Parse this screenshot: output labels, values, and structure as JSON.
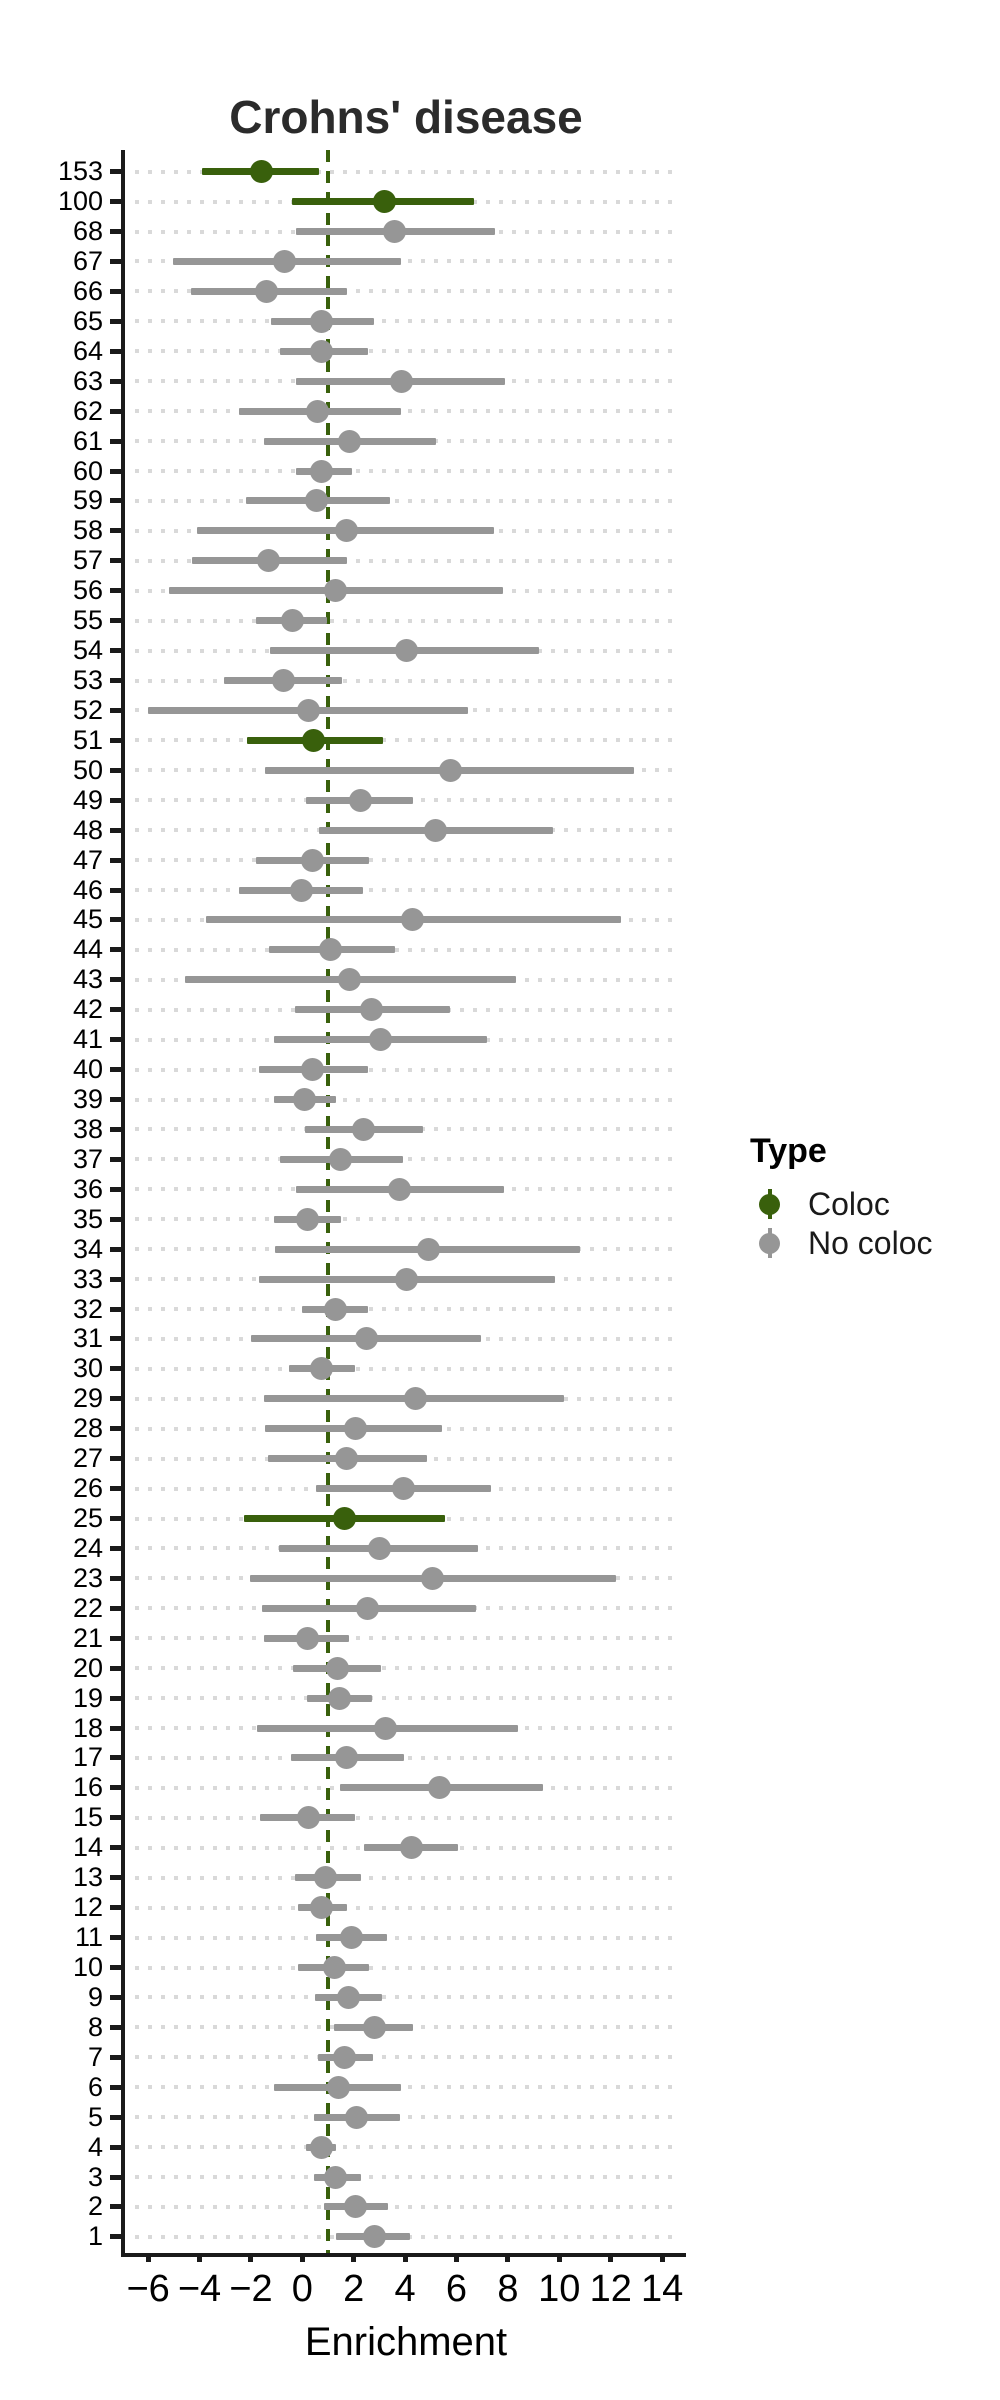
{
  "title": "Crohns' disease",
  "x_axis": {
    "label": "Enrichment",
    "ticks": [
      {
        "label": "−6",
        "value": -6
      },
      {
        "label": "−4",
        "value": -4
      },
      {
        "label": "−2",
        "value": -2
      },
      {
        "label": "0",
        "value": 0
      },
      {
        "label": "2",
        "value": 2
      },
      {
        "label": "4",
        "value": 4
      },
      {
        "label": "6",
        "value": 6
      },
      {
        "label": "8",
        "value": 8
      },
      {
        "label": "10",
        "value": 10
      },
      {
        "label": "12",
        "value": 12
      },
      {
        "label": "14",
        "value": 14
      }
    ]
  },
  "legend": {
    "title": "Type",
    "items": [
      {
        "label": "Coloc",
        "color": "#39600c"
      },
      {
        "label": "No coloc",
        "color": "#969696"
      }
    ]
  },
  "colors": {
    "coloc": "#39600c",
    "no_coloc": "#969696",
    "grid_dots": "#d9d9d9",
    "spine": "#1a1a1a",
    "reference_line": "#39600c"
  },
  "chart_data": {
    "type": "pointrange",
    "orientation": "horizontal",
    "title": "Crohns' disease",
    "xlabel": "Enrichment",
    "ylabel": "",
    "xlim": [
      -6.9,
      14.9
    ],
    "grid": "dotted-horizontal",
    "legend_position": "right",
    "reference_line_x": 1,
    "rows": [
      {
        "label": "153",
        "estimate": -1.6,
        "lower": -3.9,
        "upper": 0.65,
        "type": "Coloc"
      },
      {
        "label": "100",
        "estimate": 3.2,
        "lower": -0.4,
        "upper": 6.7,
        "type": "Coloc"
      },
      {
        "label": "68",
        "estimate": 3.6,
        "lower": -0.25,
        "upper": 7.5,
        "type": "No coloc"
      },
      {
        "label": "67",
        "estimate": -0.7,
        "lower": -5.05,
        "upper": 3.85,
        "type": "No coloc"
      },
      {
        "label": "66",
        "estimate": -1.4,
        "lower": -4.35,
        "upper": 1.75,
        "type": "No coloc"
      },
      {
        "label": "65",
        "estimate": 0.75,
        "lower": -1.2,
        "upper": 2.8,
        "type": "No coloc"
      },
      {
        "label": "64",
        "estimate": 0.75,
        "lower": -0.85,
        "upper": 2.55,
        "type": "No coloc"
      },
      {
        "label": "63",
        "estimate": 3.85,
        "lower": -0.25,
        "upper": 7.9,
        "type": "No coloc"
      },
      {
        "label": "62",
        "estimate": 0.6,
        "lower": -2.45,
        "upper": 3.85,
        "type": "No coloc"
      },
      {
        "label": "61",
        "estimate": 1.85,
        "lower": -1.5,
        "upper": 5.2,
        "type": "No coloc"
      },
      {
        "label": "60",
        "estimate": 0.75,
        "lower": -0.25,
        "upper": 1.95,
        "type": "No coloc"
      },
      {
        "label": "59",
        "estimate": 0.55,
        "lower": -2.2,
        "upper": 3.4,
        "type": "No coloc"
      },
      {
        "label": "58",
        "estimate": 1.7,
        "lower": -4.1,
        "upper": 7.45,
        "type": "No coloc"
      },
      {
        "label": "57",
        "estimate": -1.3,
        "lower": -4.3,
        "upper": 1.75,
        "type": "No coloc"
      },
      {
        "label": "56",
        "estimate": 1.3,
        "lower": -5.2,
        "upper": 7.8,
        "type": "No coloc"
      },
      {
        "label": "55",
        "estimate": -0.4,
        "lower": -1.8,
        "upper": 0.95,
        "type": "No coloc"
      },
      {
        "label": "54",
        "estimate": 4.05,
        "lower": -1.25,
        "upper": 9.2,
        "type": "No coloc"
      },
      {
        "label": "53",
        "estimate": -0.75,
        "lower": -3.05,
        "upper": 1.55,
        "type": "No coloc"
      },
      {
        "label": "52",
        "estimate": 0.25,
        "lower": -6.0,
        "upper": 6.45,
        "type": "No coloc"
      },
      {
        "label": "51",
        "estimate": 0.45,
        "lower": -2.15,
        "upper": 3.15,
        "type": "Coloc"
      },
      {
        "label": "50",
        "estimate": 5.75,
        "lower": -1.45,
        "upper": 12.9,
        "type": "No coloc"
      },
      {
        "label": "49",
        "estimate": 2.25,
        "lower": 0.15,
        "upper": 4.3,
        "type": "No coloc"
      },
      {
        "label": "48",
        "estimate": 5.2,
        "lower": 0.65,
        "upper": 9.75,
        "type": "No coloc"
      },
      {
        "label": "47",
        "estimate": 0.4,
        "lower": -1.8,
        "upper": 2.6,
        "type": "No coloc"
      },
      {
        "label": "46",
        "estimate": -0.05,
        "lower": -2.45,
        "upper": 2.35,
        "type": "No coloc"
      },
      {
        "label": "45",
        "estimate": 4.3,
        "lower": -3.75,
        "upper": 12.4,
        "type": "No coloc"
      },
      {
        "label": "44",
        "estimate": 1.1,
        "lower": -1.3,
        "upper": 3.6,
        "type": "No coloc"
      },
      {
        "label": "43",
        "estimate": 1.85,
        "lower": -4.55,
        "upper": 8.3,
        "type": "No coloc"
      },
      {
        "label": "42",
        "estimate": 2.7,
        "lower": -0.3,
        "upper": 5.75,
        "type": "No coloc"
      },
      {
        "label": "41",
        "estimate": 3.05,
        "lower": -1.1,
        "upper": 7.2,
        "type": "No coloc"
      },
      {
        "label": "40",
        "estimate": 0.4,
        "lower": -1.7,
        "upper": 2.55,
        "type": "No coloc"
      },
      {
        "label": "39",
        "estimate": 0.1,
        "lower": -1.1,
        "upper": 1.3,
        "type": "No coloc"
      },
      {
        "label": "38",
        "estimate": 2.4,
        "lower": 0.1,
        "upper": 4.7,
        "type": "No coloc"
      },
      {
        "label": "37",
        "estimate": 1.5,
        "lower": -0.85,
        "upper": 3.9,
        "type": "No coloc"
      },
      {
        "label": "36",
        "estimate": 3.8,
        "lower": -0.25,
        "upper": 7.85,
        "type": "No coloc"
      },
      {
        "label": "35",
        "estimate": 0.2,
        "lower": -1.1,
        "upper": 1.5,
        "type": "No coloc"
      },
      {
        "label": "34",
        "estimate": 4.9,
        "lower": -1.05,
        "upper": 10.8,
        "type": "No coloc"
      },
      {
        "label": "33",
        "estimate": 4.05,
        "lower": -1.7,
        "upper": 9.85,
        "type": "No coloc"
      },
      {
        "label": "32",
        "estimate": 1.3,
        "lower": 0.0,
        "upper": 2.55,
        "type": "No coloc"
      },
      {
        "label": "31",
        "estimate": 2.5,
        "lower": -2.0,
        "upper": 6.95,
        "type": "No coloc"
      },
      {
        "label": "30",
        "estimate": 0.75,
        "lower": -0.5,
        "upper": 2.05,
        "type": "No coloc"
      },
      {
        "label": "29",
        "estimate": 4.4,
        "lower": -1.5,
        "upper": 10.2,
        "type": "No coloc"
      },
      {
        "label": "28",
        "estimate": 2.05,
        "lower": -1.45,
        "upper": 5.45,
        "type": "No coloc"
      },
      {
        "label": "27",
        "estimate": 1.7,
        "lower": -1.35,
        "upper": 4.85,
        "type": "No coloc"
      },
      {
        "label": "26",
        "estimate": 3.95,
        "lower": 0.55,
        "upper": 7.35,
        "type": "No coloc"
      },
      {
        "label": "25",
        "estimate": 1.65,
        "lower": -2.25,
        "upper": 5.55,
        "type": "Coloc"
      },
      {
        "label": "24",
        "estimate": 3.0,
        "lower": -0.9,
        "upper": 6.85,
        "type": "No coloc"
      },
      {
        "label": "23",
        "estimate": 5.05,
        "lower": -2.05,
        "upper": 12.2,
        "type": "No coloc"
      },
      {
        "label": "22",
        "estimate": 2.55,
        "lower": -1.55,
        "upper": 6.75,
        "type": "No coloc"
      },
      {
        "label": "21",
        "estimate": 0.2,
        "lower": -1.5,
        "upper": 1.8,
        "type": "No coloc"
      },
      {
        "label": "20",
        "estimate": 1.35,
        "lower": -0.35,
        "upper": 3.05,
        "type": "No coloc"
      },
      {
        "label": "19",
        "estimate": 1.45,
        "lower": 0.2,
        "upper": 2.7,
        "type": "No coloc"
      },
      {
        "label": "18",
        "estimate": 3.25,
        "lower": -1.75,
        "upper": 8.4,
        "type": "No coloc"
      },
      {
        "label": "17",
        "estimate": 1.7,
        "lower": -0.45,
        "upper": 3.95,
        "type": "No coloc"
      },
      {
        "label": "16",
        "estimate": 5.35,
        "lower": 1.45,
        "upper": 9.35,
        "type": "No coloc"
      },
      {
        "label": "15",
        "estimate": 0.25,
        "lower": -1.65,
        "upper": 2.05,
        "type": "No coloc"
      },
      {
        "label": "14",
        "estimate": 4.25,
        "lower": 2.4,
        "upper": 6.05,
        "type": "No coloc"
      },
      {
        "label": "13",
        "estimate": 0.9,
        "lower": -0.3,
        "upper": 2.3,
        "type": "No coloc"
      },
      {
        "label": "12",
        "estimate": 0.75,
        "lower": -0.15,
        "upper": 1.75,
        "type": "No coloc"
      },
      {
        "label": "11",
        "estimate": 1.9,
        "lower": 0.55,
        "upper": 3.3,
        "type": "No coloc"
      },
      {
        "label": "10",
        "estimate": 1.25,
        "lower": -0.15,
        "upper": 2.6,
        "type": "No coloc"
      },
      {
        "label": "9",
        "estimate": 1.8,
        "lower": 0.5,
        "upper": 3.1,
        "type": "No coloc"
      },
      {
        "label": "8",
        "estimate": 2.8,
        "lower": 1.25,
        "upper": 4.3,
        "type": "No coloc"
      },
      {
        "label": "7",
        "estimate": 1.65,
        "lower": 0.6,
        "upper": 2.75,
        "type": "No coloc"
      },
      {
        "label": "6",
        "estimate": 1.4,
        "lower": -1.1,
        "upper": 3.85,
        "type": "No coloc"
      },
      {
        "label": "5",
        "estimate": 2.1,
        "lower": 0.45,
        "upper": 3.8,
        "type": "No coloc"
      },
      {
        "label": "4",
        "estimate": 0.75,
        "lower": 0.15,
        "upper": 1.3,
        "type": "No coloc"
      },
      {
        "label": "3",
        "estimate": 1.3,
        "lower": 0.45,
        "upper": 2.3,
        "type": "No coloc"
      },
      {
        "label": "2",
        "estimate": 2.05,
        "lower": 0.85,
        "upper": 3.35,
        "type": "No coloc"
      },
      {
        "label": "1",
        "estimate": 2.8,
        "lower": 1.3,
        "upper": 4.2,
        "type": "No coloc"
      }
    ]
  }
}
